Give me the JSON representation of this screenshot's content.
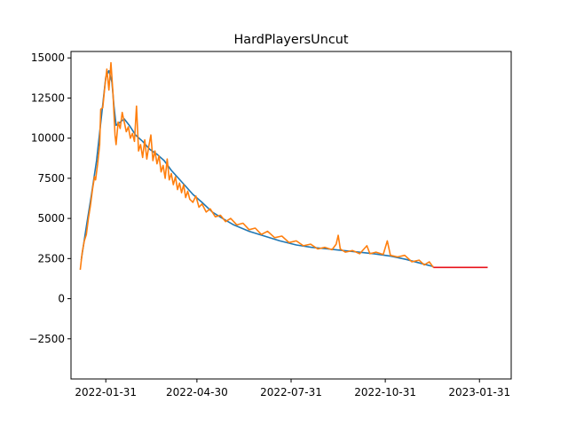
{
  "chart_data": {
    "type": "line",
    "title": "HardPlayersUncut",
    "xlabel": "",
    "ylabel": "",
    "x_axis": {
      "type": "date",
      "range": [
        "2021-12-28",
        "2023-03-03"
      ],
      "ticks": [
        "2022-01-31",
        "2022-04-30",
        "2022-07-31",
        "2022-10-31",
        "2023-01-31"
      ]
    },
    "y_axis": {
      "range": [
        -5000,
        15400
      ],
      "ticks": [
        -2500,
        0,
        2500,
        5000,
        7500,
        10000,
        12500,
        15000
      ]
    },
    "grid": false,
    "legend": "none",
    "series": [
      {
        "color": "#1f77b4",
        "points": [
          [
            "2022-01-07",
            2400
          ],
          [
            "2022-01-12",
            4500
          ],
          [
            "2022-01-17",
            6500
          ],
          [
            "2022-01-22",
            8600
          ],
          [
            "2022-01-27",
            11500
          ],
          [
            "2022-01-31",
            13800
          ],
          [
            "2022-02-03",
            14200
          ],
          [
            "2022-02-06",
            13500
          ],
          [
            "2022-02-08",
            12000
          ],
          [
            "2022-02-10",
            10800
          ],
          [
            "2022-02-14",
            11000
          ],
          [
            "2022-02-18",
            11200
          ],
          [
            "2022-02-23",
            10800
          ],
          [
            "2022-03-01",
            10200
          ],
          [
            "2022-03-08",
            9800
          ],
          [
            "2022-03-15",
            9300
          ],
          [
            "2022-03-22",
            9000
          ],
          [
            "2022-03-29",
            8600
          ],
          [
            "2022-04-05",
            8000
          ],
          [
            "2022-04-12",
            7500
          ],
          [
            "2022-04-19",
            7000
          ],
          [
            "2022-04-26",
            6500
          ],
          [
            "2022-05-05",
            6000
          ],
          [
            "2022-05-15",
            5400
          ],
          [
            "2022-05-25",
            5000
          ],
          [
            "2022-06-05",
            4600
          ],
          [
            "2022-06-20",
            4200
          ],
          [
            "2022-07-05",
            3900
          ],
          [
            "2022-07-20",
            3600
          ],
          [
            "2022-08-05",
            3350
          ],
          [
            "2022-08-20",
            3200
          ],
          [
            "2022-09-05",
            3100
          ],
          [
            "2022-09-20",
            3000
          ],
          [
            "2022-10-05",
            2900
          ],
          [
            "2022-10-20",
            2800
          ],
          [
            "2022-11-05",
            2650
          ],
          [
            "2022-11-20",
            2450
          ],
          [
            "2022-12-05",
            2200
          ],
          [
            "2022-12-17",
            2000
          ]
        ]
      },
      {
        "color": "#ff7f0e",
        "points": [
          [
            "2022-01-06",
            1800
          ],
          [
            "2022-01-08",
            2900
          ],
          [
            "2022-01-10",
            3600
          ],
          [
            "2022-01-12",
            4000
          ],
          [
            "2022-01-14",
            5000
          ],
          [
            "2022-01-16",
            5800
          ],
          [
            "2022-01-18",
            6800
          ],
          [
            "2022-01-20",
            7600
          ],
          [
            "2022-01-21",
            7400
          ],
          [
            "2022-01-23",
            8400
          ],
          [
            "2022-01-25",
            9600
          ],
          [
            "2022-01-26",
            11800
          ],
          [
            "2022-01-28",
            11900
          ],
          [
            "2022-01-30",
            13200
          ],
          [
            "2022-02-01",
            14300
          ],
          [
            "2022-02-03",
            13000
          ],
          [
            "2022-02-05",
            14700
          ],
          [
            "2022-02-07",
            12800
          ],
          [
            "2022-02-09",
            10200
          ],
          [
            "2022-02-10",
            9600
          ],
          [
            "2022-02-12",
            11000
          ],
          [
            "2022-02-14",
            10600
          ],
          [
            "2022-02-16",
            11600
          ],
          [
            "2022-02-18",
            11000
          ],
          [
            "2022-02-20",
            10400
          ],
          [
            "2022-02-22",
            10700
          ],
          [
            "2022-02-24",
            10000
          ],
          [
            "2022-02-26",
            10300
          ],
          [
            "2022-02-28",
            9800
          ],
          [
            "2022-03-02",
            12000
          ],
          [
            "2022-03-04",
            9200
          ],
          [
            "2022-03-06",
            9600
          ],
          [
            "2022-03-08",
            8800
          ],
          [
            "2022-03-10",
            9900
          ],
          [
            "2022-03-12",
            8700
          ],
          [
            "2022-03-14",
            9500
          ],
          [
            "2022-03-16",
            10200
          ],
          [
            "2022-03-18",
            8600
          ],
          [
            "2022-03-20",
            9200
          ],
          [
            "2022-03-22",
            8400
          ],
          [
            "2022-03-24",
            8900
          ],
          [
            "2022-03-26",
            7900
          ],
          [
            "2022-03-28",
            8300
          ],
          [
            "2022-03-30",
            7500
          ],
          [
            "2022-04-01",
            8700
          ],
          [
            "2022-04-03",
            7400
          ],
          [
            "2022-04-05",
            7800
          ],
          [
            "2022-04-07",
            7100
          ],
          [
            "2022-04-09",
            7600
          ],
          [
            "2022-04-11",
            6800
          ],
          [
            "2022-04-13",
            7200
          ],
          [
            "2022-04-15",
            6600
          ],
          [
            "2022-04-17",
            7100
          ],
          [
            "2022-04-19",
            6300
          ],
          [
            "2022-04-21",
            6700
          ],
          [
            "2022-04-23",
            6200
          ],
          [
            "2022-04-26",
            6000
          ],
          [
            "2022-04-29",
            6400
          ],
          [
            "2022-05-02",
            5700
          ],
          [
            "2022-05-05",
            5900
          ],
          [
            "2022-05-09",
            5400
          ],
          [
            "2022-05-13",
            5600
          ],
          [
            "2022-05-18",
            5100
          ],
          [
            "2022-05-23",
            5200
          ],
          [
            "2022-05-28",
            4800
          ],
          [
            "2022-06-02",
            5000
          ],
          [
            "2022-06-08",
            4600
          ],
          [
            "2022-06-14",
            4700
          ],
          [
            "2022-06-20",
            4300
          ],
          [
            "2022-06-26",
            4400
          ],
          [
            "2022-07-02",
            4000
          ],
          [
            "2022-07-08",
            4200
          ],
          [
            "2022-07-15",
            3800
          ],
          [
            "2022-07-22",
            3900
          ],
          [
            "2022-07-29",
            3500
          ],
          [
            "2022-08-05",
            3600
          ],
          [
            "2022-08-12",
            3300
          ],
          [
            "2022-08-19",
            3400
          ],
          [
            "2022-08-26",
            3100
          ],
          [
            "2022-09-02",
            3200
          ],
          [
            "2022-09-09",
            3050
          ],
          [
            "2022-09-13",
            3400
          ],
          [
            "2022-09-15",
            3950
          ],
          [
            "2022-09-17",
            3100
          ],
          [
            "2022-09-22",
            2900
          ],
          [
            "2022-09-29",
            3000
          ],
          [
            "2022-10-06",
            2800
          ],
          [
            "2022-10-13",
            3300
          ],
          [
            "2022-10-16",
            2800
          ],
          [
            "2022-10-22",
            2900
          ],
          [
            "2022-10-29",
            2750
          ],
          [
            "2022-11-02",
            3600
          ],
          [
            "2022-11-05",
            2700
          ],
          [
            "2022-11-12",
            2600
          ],
          [
            "2022-11-19",
            2700
          ],
          [
            "2022-11-26",
            2300
          ],
          [
            "2022-12-03",
            2400
          ],
          [
            "2022-12-08",
            2100
          ],
          [
            "2022-12-13",
            2300
          ],
          [
            "2022-12-17",
            1950
          ]
        ]
      },
      {
        "color": "#e8121a",
        "points": [
          [
            "2022-12-17",
            1950
          ],
          [
            "2023-02-08",
            1950
          ]
        ]
      }
    ]
  }
}
